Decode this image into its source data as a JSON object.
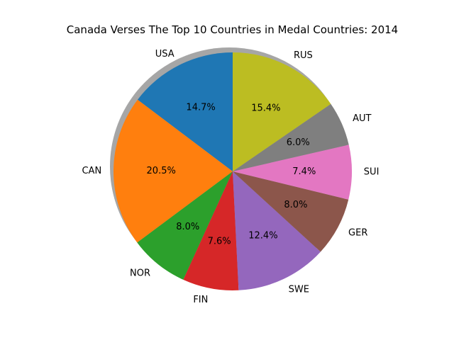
{
  "chart_data": {
    "type": "pie",
    "title": "Canada Verses The Top 10 Countries in Medal Countries: 2014",
    "start_angle_deg": 90,
    "direction": "counterclockwise",
    "shadow": true,
    "autopct_format": "%.1f%%",
    "slices": [
      {
        "label": "USA",
        "value": 14.7,
        "pct_label": "14.7%",
        "color": "#1f77b4"
      },
      {
        "label": "CAN",
        "value": 20.5,
        "pct_label": "20.5%",
        "color": "#ff7f0e"
      },
      {
        "label": "NOR",
        "value": 8.0,
        "pct_label": "8.0%",
        "color": "#2ca02c"
      },
      {
        "label": "FIN",
        "value": 7.6,
        "pct_label": "7.6%",
        "color": "#d62728"
      },
      {
        "label": "SWE",
        "value": 12.4,
        "pct_label": "12.4%",
        "color": "#9467bd"
      },
      {
        "label": "GER",
        "value": 8.0,
        "pct_label": "8.0%",
        "color": "#8c564b"
      },
      {
        "label": "SUI",
        "value": 7.4,
        "pct_label": "7.4%",
        "color": "#e377c2"
      },
      {
        "label": "AUT",
        "value": 6.0,
        "pct_label": "6.0%",
        "color": "#7f7f7f"
      },
      {
        "label": "RUS",
        "value": 15.4,
        "pct_label": "15.4%",
        "color": "#bcbd22"
      }
    ]
  }
}
